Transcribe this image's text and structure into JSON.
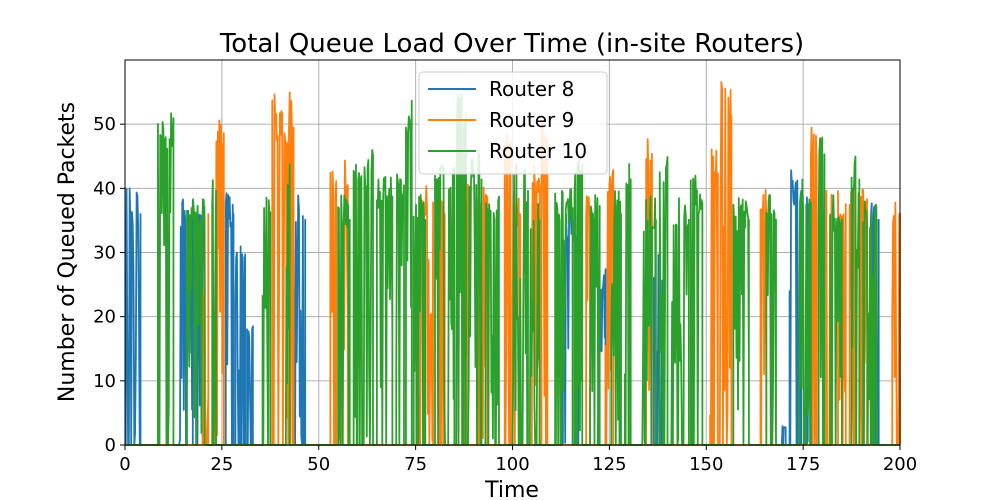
{
  "chart_data": {
    "type": "line",
    "title": "Total Queue Load Over Time (in-site Routers)",
    "xlabel": "Time",
    "ylabel": "Number of Queued Packets",
    "xlim": [
      0,
      200
    ],
    "ylim": [
      0,
      60
    ],
    "xticks": [
      0,
      25,
      50,
      75,
      100,
      125,
      150,
      175,
      200
    ],
    "yticks": [
      0,
      10,
      20,
      30,
      40,
      50
    ],
    "grid": true,
    "legend": "top-center",
    "series": [
      {
        "name": "Router 8",
        "color": "#1f77b4",
        "bursts": [
          [
            0.2,
            4.0,
            40
          ],
          [
            14.0,
            17.5,
            39
          ],
          [
            18.5,
            20.5,
            38
          ],
          [
            26.0,
            28.0,
            40
          ],
          [
            28.5,
            31.0,
            33
          ],
          [
            31.5,
            33.0,
            19
          ],
          [
            43.5,
            46.5,
            39
          ],
          [
            113.0,
            117.0,
            37
          ],
          [
            122.0,
            124.0,
            28
          ],
          [
            136.5,
            139.0,
            30
          ],
          [
            169.5,
            170.5,
            3
          ],
          [
            171.5,
            174.5,
            44
          ],
          [
            176.0,
            178.0,
            39
          ],
          [
            192.5,
            194.5,
            39
          ]
        ]
      },
      {
        "name": "Router 9",
        "color": "#ff7f0e",
        "bursts": [
          [
            20.0,
            21.5,
            40
          ],
          [
            23.0,
            25.5,
            54
          ],
          [
            38.0,
            43.5,
            55
          ],
          [
            53.0,
            54.5,
            44
          ],
          [
            56.0,
            57.5,
            45
          ],
          [
            76.0,
            79.5,
            42
          ],
          [
            81.0,
            82.5,
            40
          ],
          [
            87.0,
            88.5,
            44
          ],
          [
            91.0,
            93.5,
            43
          ],
          [
            98.0,
            99.5,
            49
          ],
          [
            100.0,
            102.0,
            40
          ],
          [
            105.0,
            107.0,
            45
          ],
          [
            107.5,
            109.0,
            53
          ],
          [
            119.0,
            120.0,
            41
          ],
          [
            124.0,
            126.0,
            46
          ],
          [
            134.5,
            136.0,
            49
          ],
          [
            151.0,
            153.0,
            47
          ],
          [
            153.5,
            156.5,
            57
          ],
          [
            164.0,
            165.5,
            41
          ],
          [
            177.0,
            178.5,
            50
          ],
          [
            181.0,
            182.5,
            40
          ],
          [
            184.0,
            186.0,
            41
          ],
          [
            187.0,
            188.5,
            44
          ],
          [
            189.5,
            191.5,
            40
          ],
          [
            198.0,
            200.0,
            39
          ]
        ]
      },
      {
        "name": "Router 10",
        "color": "#2ca02c",
        "bursts": [
          [
            8.5,
            12.5,
            52
          ],
          [
            16.0,
            20.5,
            39
          ],
          [
            22.5,
            23.5,
            43
          ],
          [
            35.5,
            37.5,
            39
          ],
          [
            41.5,
            42.5,
            45
          ],
          [
            55.0,
            58.0,
            39
          ],
          [
            59.0,
            64.0,
            46
          ],
          [
            65.0,
            69.0,
            43
          ],
          [
            70.0,
            72.0,
            45
          ],
          [
            72.5,
            74.0,
            55
          ],
          [
            74.5,
            77.5,
            39
          ],
          [
            80.0,
            85.0,
            45
          ],
          [
            85.5,
            88.0,
            55
          ],
          [
            88.5,
            92.0,
            46
          ],
          [
            93.0,
            96.5,
            39
          ],
          [
            100.0,
            104.0,
            44
          ],
          [
            104.5,
            107.0,
            39
          ],
          [
            111.0,
            115.5,
            40
          ],
          [
            116.0,
            118.0,
            46
          ],
          [
            120.0,
            122.5,
            39
          ],
          [
            125.5,
            128.0,
            40
          ],
          [
            129.0,
            130.5,
            46
          ],
          [
            133.5,
            137.0,
            39
          ],
          [
            138.0,
            140.0,
            46
          ],
          [
            141.0,
            145.5,
            39
          ],
          [
            146.0,
            149.0,
            42
          ],
          [
            157.0,
            161.0,
            39
          ],
          [
            165.5,
            168.0,
            39
          ],
          [
            174.0,
            177.0,
            42
          ],
          [
            179.0,
            180.5,
            49
          ],
          [
            182.0,
            185.0,
            39
          ],
          [
            187.5,
            189.5,
            46
          ],
          [
            190.5,
            194.0,
            39
          ]
        ]
      }
    ]
  }
}
